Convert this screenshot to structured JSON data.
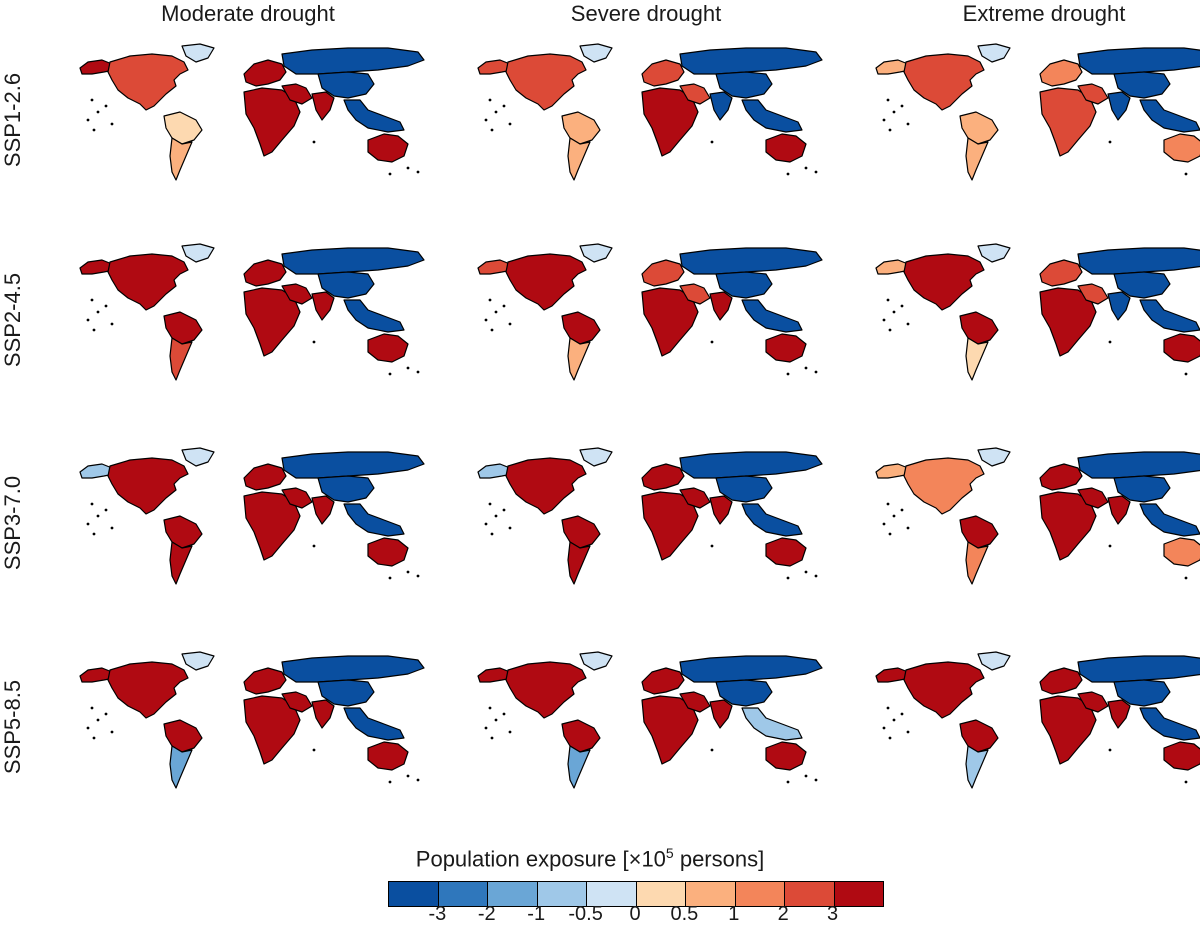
{
  "columns": [
    "Moderate drought",
    "Severe drought",
    "Extreme drought"
  ],
  "rows": [
    "SSP1-2.6",
    "SSP2-4.5",
    "SSP3-7.0",
    "SSP5-8.5"
  ],
  "legend": {
    "title_prefix": "Population exposure [×10",
    "title_exponent": "5",
    "title_suffix": " persons]",
    "colors": [
      "#0a4fa0",
      "#2f77bc",
      "#6aa6d6",
      "#9fc8e8",
      "#cfe3f4",
      "#fdd9b0",
      "#fbb07e",
      "#f3855a",
      "#dc4a37",
      "#b00a12"
    ],
    "ticks": [
      "-3",
      "-2",
      "-1",
      "-0.5",
      "0",
      "0.5",
      "1",
      "2",
      "3"
    ]
  },
  "chart_data": {
    "type": "choropleth-map-grid",
    "panels": [
      {
        "row": "SSP1-2.6",
        "col": "Moderate drought",
        "regions": {
          "north_america": 8,
          "alaska": 9,
          "greenland": 4,
          "south_america_north": 5,
          "south_america_south": 6,
          "europe": 9,
          "africa": 9,
          "russia": 0,
          "china": 0,
          "india": 9,
          "middle_east": 9,
          "southeast_asia": 0,
          "australia": 9
        }
      },
      {
        "row": "SSP1-2.6",
        "col": "Severe drought",
        "regions": {
          "north_america": 8,
          "alaska": 8,
          "greenland": 4,
          "south_america_north": 6,
          "south_america_south": 6,
          "europe": 8,
          "africa": 9,
          "russia": 0,
          "china": 0,
          "india": 0,
          "middle_east": 8,
          "southeast_asia": 0,
          "australia": 9
        }
      },
      {
        "row": "SSP1-2.6",
        "col": "Extreme drought",
        "regions": {
          "north_america": 8,
          "alaska": 6,
          "greenland": 4,
          "south_america_north": 6,
          "south_america_south": 6,
          "europe": 7,
          "africa": 8,
          "russia": 0,
          "china": 0,
          "india": 0,
          "middle_east": 8,
          "southeast_asia": 0,
          "australia": 7
        }
      },
      {
        "row": "SSP2-4.5",
        "col": "Moderate drought",
        "regions": {
          "north_america": 9,
          "alaska": 9,
          "greenland": 4,
          "south_america_north": 9,
          "south_america_south": 8,
          "europe": 9,
          "africa": 9,
          "russia": 0,
          "china": 0,
          "india": 9,
          "middle_east": 9,
          "southeast_asia": 0,
          "australia": 9
        }
      },
      {
        "row": "SSP2-4.5",
        "col": "Severe drought",
        "regions": {
          "north_america": 9,
          "alaska": 8,
          "greenland": 4,
          "south_america_north": 9,
          "south_america_south": 6,
          "europe": 8,
          "africa": 9,
          "russia": 0,
          "china": 0,
          "india": 9,
          "middle_east": 8,
          "southeast_asia": 0,
          "australia": 9
        }
      },
      {
        "row": "SSP2-4.5",
        "col": "Extreme drought",
        "regions": {
          "north_america": 9,
          "alaska": 6,
          "greenland": 4,
          "south_america_north": 9,
          "south_america_south": 5,
          "europe": 8,
          "africa": 9,
          "russia": 0,
          "china": 0,
          "india": 0,
          "middle_east": 8,
          "southeast_asia": 0,
          "australia": 9
        }
      },
      {
        "row": "SSP3-7.0",
        "col": "Moderate drought",
        "regions": {
          "north_america": 9,
          "alaska": 3,
          "greenland": 4,
          "south_america_north": 9,
          "south_america_south": 9,
          "europe": 9,
          "africa": 9,
          "russia": 0,
          "china": 0,
          "india": 9,
          "middle_east": 9,
          "southeast_asia": 0,
          "australia": 9
        }
      },
      {
        "row": "SSP3-7.0",
        "col": "Severe drought",
        "regions": {
          "north_america": 9,
          "alaska": 3,
          "greenland": 4,
          "south_america_north": 9,
          "south_america_south": 9,
          "europe": 9,
          "africa": 9,
          "russia": 0,
          "china": 0,
          "india": 9,
          "middle_east": 9,
          "southeast_asia": 0,
          "australia": 9
        }
      },
      {
        "row": "SSP3-7.0",
        "col": "Extreme drought",
        "regions": {
          "north_america": 7,
          "alaska": 6,
          "greenland": 4,
          "south_america_north": 9,
          "south_america_south": 7,
          "europe": 9,
          "africa": 9,
          "russia": 0,
          "china": 0,
          "india": 9,
          "middle_east": 9,
          "southeast_asia": 0,
          "australia": 7
        }
      },
      {
        "row": "SSP5-8.5",
        "col": "Moderate drought",
        "regions": {
          "north_america": 9,
          "alaska": 9,
          "greenland": 4,
          "south_america_north": 9,
          "south_america_south": 2,
          "europe": 9,
          "africa": 9,
          "russia": 0,
          "china": 0,
          "india": 9,
          "middle_east": 9,
          "southeast_asia": 0,
          "australia": 9
        }
      },
      {
        "row": "SSP5-8.5",
        "col": "Severe drought",
        "regions": {
          "north_america": 9,
          "alaska": 9,
          "greenland": 4,
          "south_america_north": 9,
          "south_america_south": 2,
          "europe": 9,
          "africa": 9,
          "russia": 0,
          "china": 0,
          "india": 9,
          "middle_east": 9,
          "southeast_asia": 3,
          "australia": 9
        }
      },
      {
        "row": "SSP5-8.5",
        "col": "Extreme drought",
        "regions": {
          "north_america": 9,
          "alaska": 9,
          "greenland": 4,
          "south_america_north": 9,
          "south_america_south": 3,
          "europe": 9,
          "africa": 9,
          "russia": 0,
          "china": 0,
          "india": 9,
          "middle_east": 9,
          "southeast_asia": 0,
          "australia": 9
        }
      }
    ]
  }
}
